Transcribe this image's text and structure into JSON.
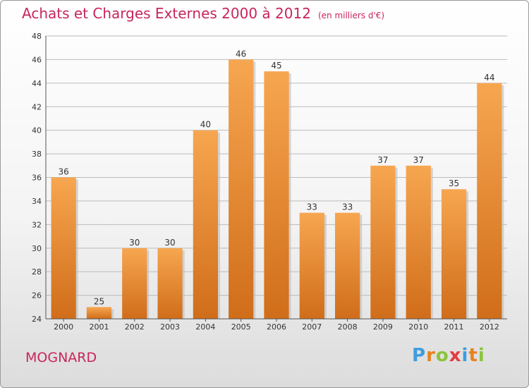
{
  "header": {
    "title": "Achats et Charges Externes 2000 à 2012",
    "subtitle": "(en milliers d'€)"
  },
  "commune": "MOGNARD",
  "logo": {
    "letters": [
      "P",
      "r",
      "o",
      "x",
      "i",
      "t",
      "i"
    ],
    "colors": [
      "#3d9de0",
      "#e8821e",
      "#8cc43c",
      "#e23d3d",
      "#3d9de0",
      "#e8821e",
      "#8cc43c"
    ]
  },
  "colors": {
    "bar_top": "#f7a650",
    "bar_bottom": "#d06d1a",
    "grid": "#bbbbbb",
    "title": "#c8265a"
  },
  "chart_data": {
    "type": "bar",
    "categories": [
      "2000",
      "2001",
      "2002",
      "2003",
      "2004",
      "2005",
      "2006",
      "2007",
      "2008",
      "2009",
      "2010",
      "2011",
      "2012"
    ],
    "values": [
      36,
      25,
      30,
      30,
      40,
      46,
      45,
      33,
      33,
      37,
      37,
      35,
      44
    ],
    "title": "Achats et Charges Externes 2000 à 2012",
    "xlabel": "",
    "ylabel": "",
    "ylim": [
      24,
      48
    ],
    "yticks": [
      24,
      26,
      28,
      30,
      32,
      34,
      36,
      38,
      40,
      42,
      44,
      46,
      48
    ],
    "grid": true,
    "legend": "none"
  }
}
